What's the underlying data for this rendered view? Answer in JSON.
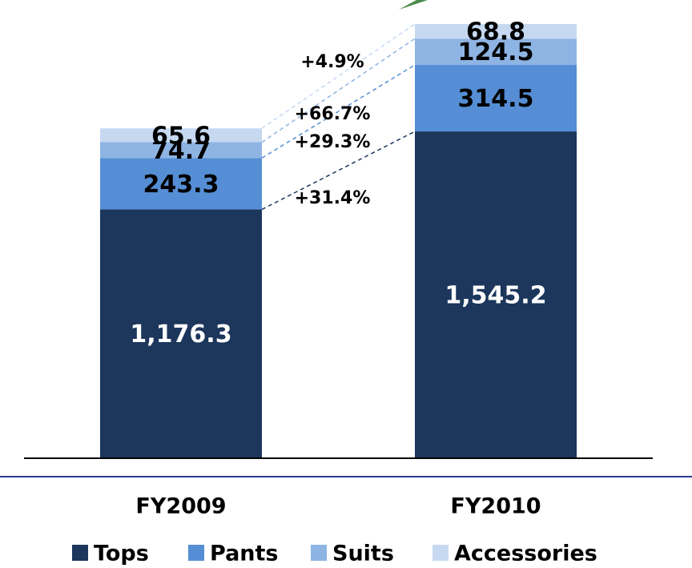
{
  "chart_data": {
    "type": "stacked-bar",
    "categories": [
      "FY2009",
      "FY2010"
    ],
    "series": [
      {
        "name": "Tops",
        "color": "#1c365c",
        "values": [
          1176.3,
          1545.2
        ],
        "value_labels": [
          "1,176.3",
          "1,545.2"
        ],
        "growth_label": "+31.4%"
      },
      {
        "name": "Pants",
        "color": "#558ed5",
        "values": [
          243.3,
          314.5
        ],
        "growth_label": "+29.3%"
      },
      {
        "name": "Suits",
        "color": "#8eb4e3",
        "values": [
          74.7,
          124.5
        ],
        "growth_label": "+66.7%"
      },
      {
        "name": "Accessories",
        "color": "#c6d9f1",
        "values": [
          65.6,
          68.8
        ],
        "growth_label": "+4.9%"
      }
    ]
  }
}
